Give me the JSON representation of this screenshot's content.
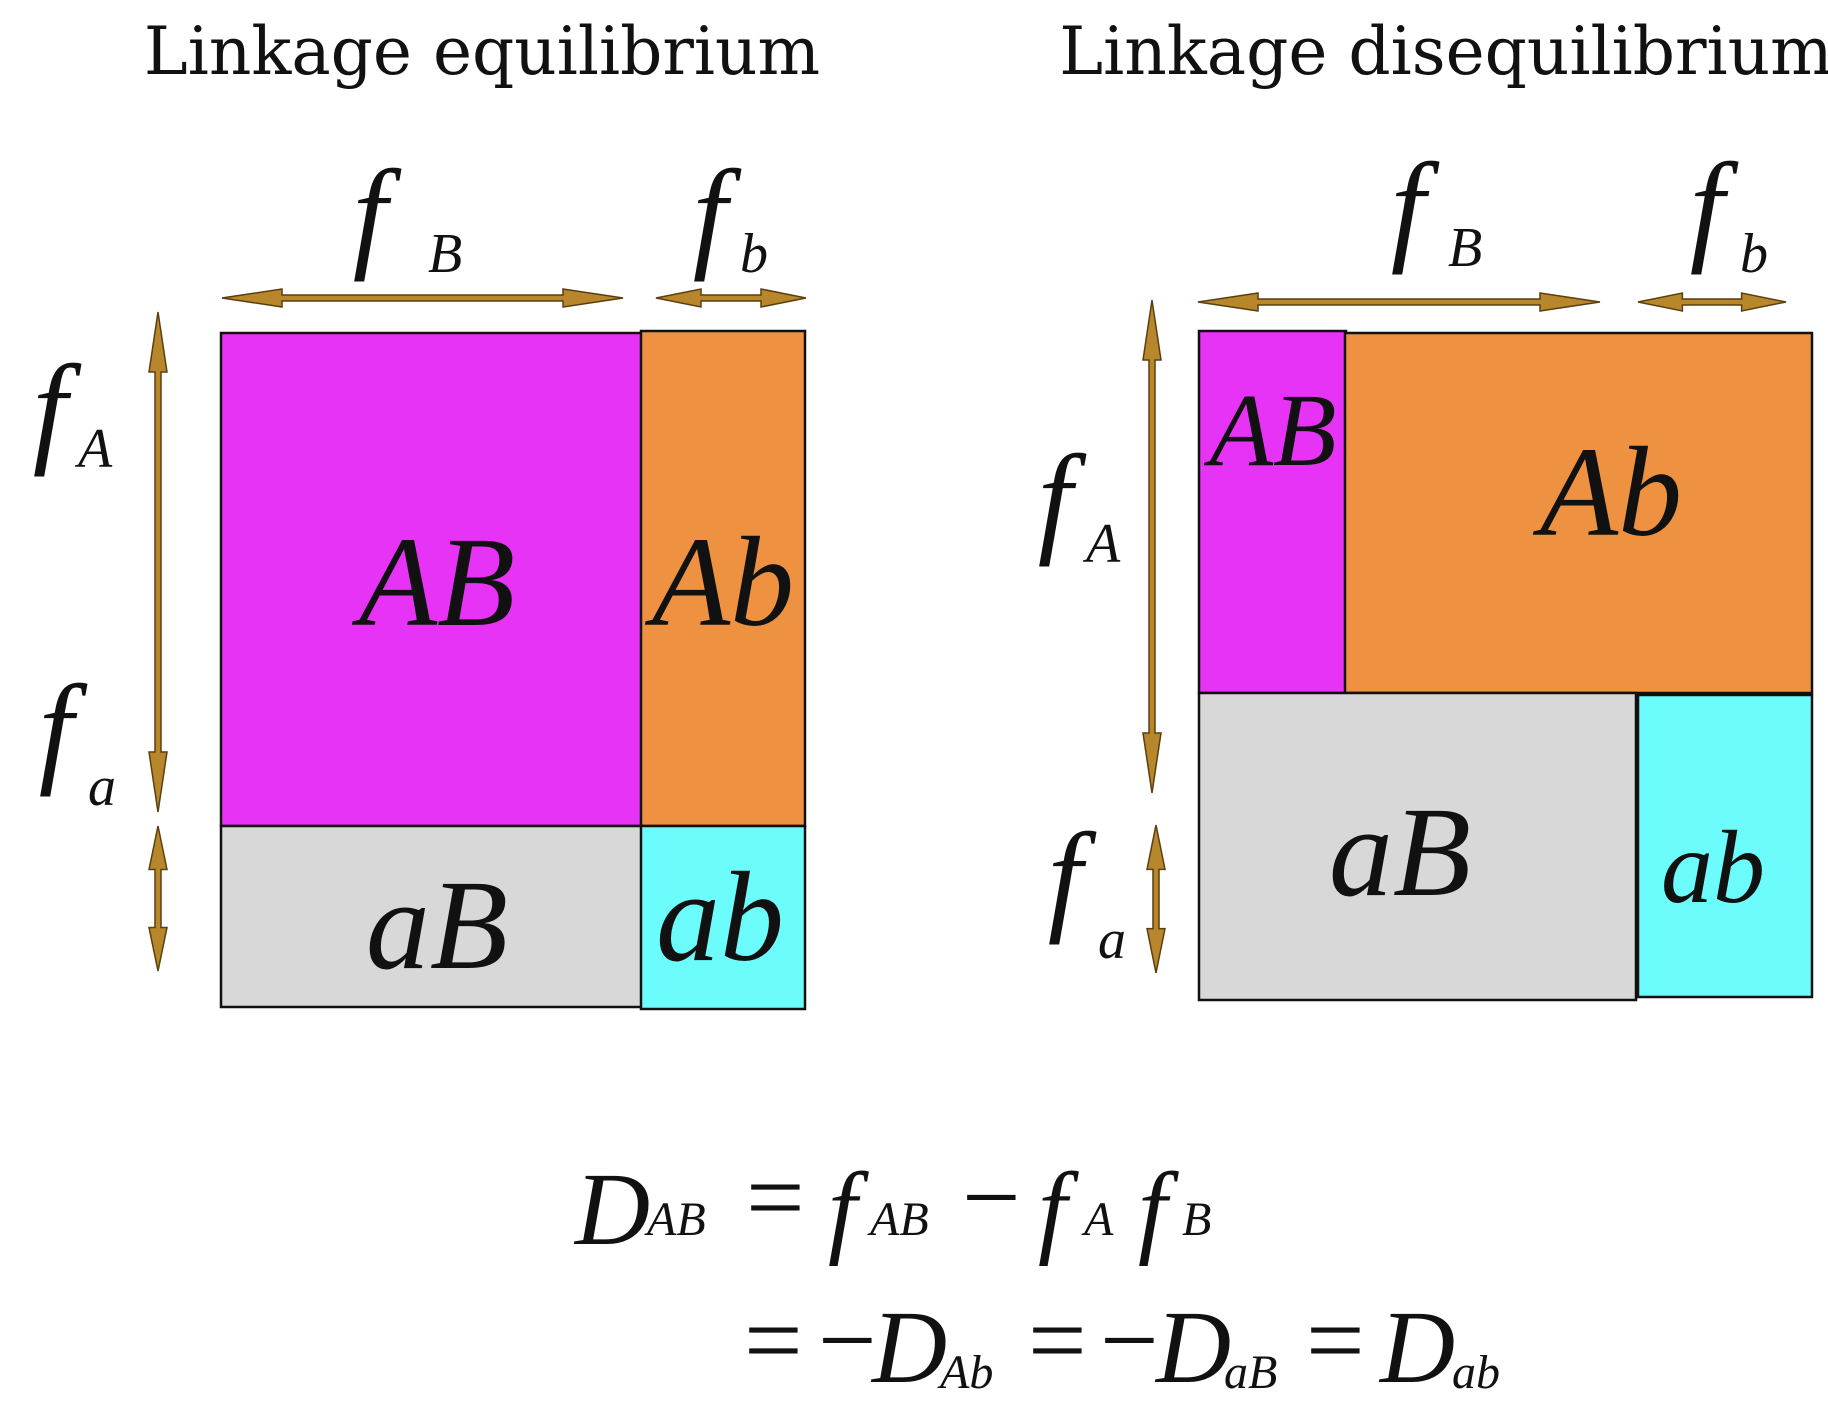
{
  "panels": {
    "left": {
      "title": "Linkage equilibrium",
      "cells": {
        "AB": "AB",
        "Ab": "Ab",
        "aB": "aB",
        "ab": "ab"
      },
      "labels": {
        "fB": "f",
        "fB_sub": "B",
        "fb": "f",
        "fb_sub": "b",
        "fA": "f",
        "fA_sub": "A",
        "fa": "f",
        "fa_sub": "a"
      }
    },
    "right": {
      "title": "Linkage disequilibrium",
      "cells": {
        "AB": "AB",
        "Ab": "Ab",
        "aB": "aB",
        "ab": "ab"
      },
      "labels": {
        "fB": "f",
        "fB_sub": "B",
        "fb": "f",
        "fb_sub": "b",
        "fA": "f",
        "fA_sub": "A",
        "fa": "f",
        "fa_sub": "a"
      }
    }
  },
  "equation": {
    "line1": {
      "D": "D",
      "D_sub": "AB",
      "eq": "=",
      "f1": "f",
      "f1_sub": "AB",
      "minus": "−",
      "f2": "f",
      "f2_sub": "A",
      "f3": "f",
      "f3_sub": "B"
    },
    "line2": {
      "eq1": "=",
      "neg1": "−",
      "D1": "D",
      "D1_sub": "Ab",
      "eq2": "=",
      "neg2": "−",
      "D2": "D",
      "D2_sub": "aB",
      "eq3": "=",
      "D3": "D",
      "D3_sub": "ab"
    }
  },
  "colors": {
    "AB": "#e633f6",
    "Ab": "#ee9242",
    "aB": "#d8d8d8",
    "ab": "#6cfcfc",
    "arrow": "#b8862b"
  }
}
